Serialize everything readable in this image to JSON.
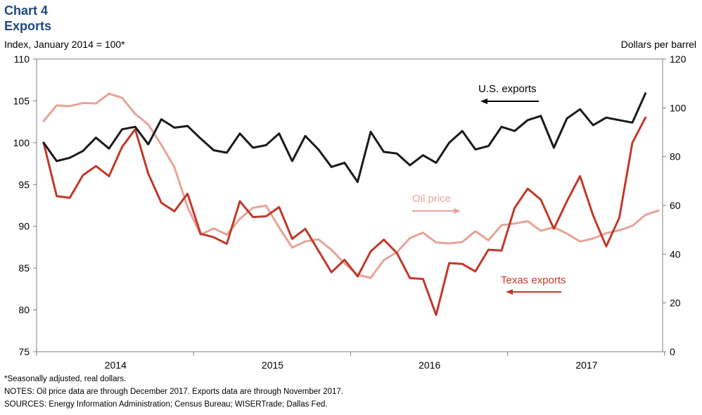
{
  "header": {
    "chart_number": "Chart 4",
    "title": "Exports",
    "left_axis_caption": "Index, January 2014 = 100*",
    "right_axis_caption": "Dollars per barrel"
  },
  "notes": {
    "footnote": "*Seasonally adjusted, real dollars.",
    "notes": "NOTES: Oil price data are through December 2017. Exports data are through November 2017.",
    "sources": "SOURCES: Energy Information Administration; Census Bureau; WISERTrade; Dallas Fed."
  },
  "colors": {
    "us_exports": "#1a1a1a",
    "texas_exports": "#c0392b",
    "oil_price": "#e8a397",
    "title": "#1f497d"
  },
  "chart_data": {
    "type": "line",
    "x_tick_labels": [
      "2014",
      "2015",
      "2016",
      "2017"
    ],
    "left_axis": {
      "ylim": [
        75,
        110
      ],
      "ticks": [
        75,
        80,
        85,
        90,
        95,
        100,
        105,
        110
      ]
    },
    "right_axis": {
      "ylim": [
        0,
        120
      ],
      "ticks": [
        0,
        20,
        40,
        60,
        80,
        100,
        120
      ]
    },
    "grid": false,
    "annotations": [
      {
        "text": "U.S. exports",
        "arrow": "left"
      },
      {
        "text": "Oil price",
        "arrow": "right"
      },
      {
        "text": "Texas exports",
        "arrow": "left"
      }
    ],
    "series": [
      {
        "name": "U.S. exports",
        "axis": "left",
        "start": "2014-01",
        "values": [
          100.0,
          97.8,
          98.2,
          99.0,
          100.6,
          99.3,
          101.6,
          101.9,
          99.8,
          102.8,
          101.8,
          102.0,
          100.5,
          99.1,
          98.8,
          101.1,
          99.4,
          99.7,
          101.1,
          97.8,
          100.8,
          99.2,
          97.1,
          97.6,
          95.3,
          101.3,
          98.9,
          98.7,
          97.3,
          98.5,
          97.6,
          100.0,
          101.4,
          99.2,
          99.6,
          101.9,
          101.4,
          102.7,
          103.2,
          99.4,
          102.9,
          104.0,
          102.1,
          103.0,
          102.7,
          102.4,
          105.9
        ]
      },
      {
        "name": "Texas exports",
        "axis": "left",
        "start": "2014-01",
        "values": [
          100.0,
          93.6,
          93.4,
          96.1,
          97.2,
          96.0,
          99.5,
          101.6,
          96.3,
          92.8,
          91.8,
          93.9,
          89.1,
          88.7,
          87.9,
          93.0,
          91.1,
          91.2,
          92.3,
          88.5,
          89.7,
          87.1,
          84.5,
          86.0,
          84.0,
          87.0,
          88.4,
          86.8,
          83.8,
          83.7,
          79.4,
          85.6,
          85.5,
          84.6,
          87.2,
          87.1,
          92.2,
          94.5,
          93.2,
          89.7,
          93.0,
          96.0,
          91.3,
          87.6,
          91.0,
          100.0,
          103.0
        ]
      },
      {
        "name": "Oil price",
        "axis": "right",
        "start": "2014-01",
        "values": [
          94.6,
          101.0,
          100.7,
          102.0,
          101.8,
          105.8,
          104.1,
          97.5,
          93.2,
          84.8,
          75.6,
          59.3,
          48.0,
          50.6,
          48.0,
          54.5,
          59.0,
          59.9,
          50.9,
          42.7,
          45.2,
          46.1,
          41.8,
          36.2,
          31.5,
          30.3,
          37.6,
          40.8,
          46.6,
          48.8,
          44.8,
          44.4,
          45.0,
          49.4,
          45.7,
          51.9,
          52.6,
          53.5,
          49.6,
          51.1,
          48.4,
          45.2,
          46.4,
          48.6,
          49.8,
          51.6,
          56.1,
          57.9
        ]
      }
    ]
  }
}
